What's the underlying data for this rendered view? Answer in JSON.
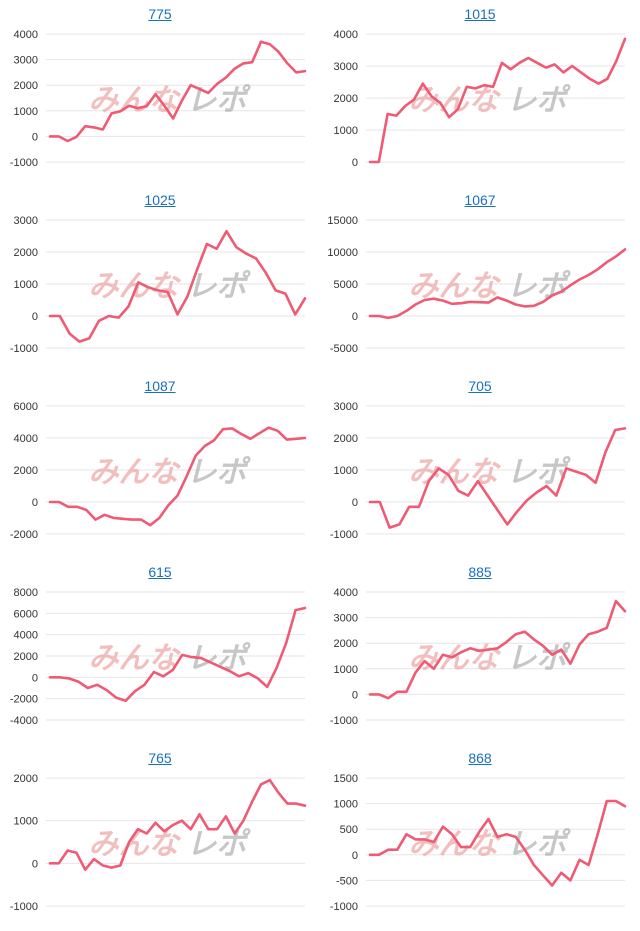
{
  "watermark": {
    "left": "みんな",
    "right": "レポ"
  },
  "colors": {
    "line": "#ef5a74",
    "title_link": "#1a6fc0",
    "grid": "#e6e6e6"
  },
  "chart_data": [
    {
      "type": "line",
      "title": "775",
      "ylim": [
        -1000,
        4000
      ],
      "yticks": [
        -1000,
        0,
        1000,
        2000,
        3000,
        4000
      ],
      "values": [
        0,
        0,
        -180,
        -20,
        400,
        350,
        270,
        900,
        980,
        1200,
        1100,
        1180,
        1650,
        1200,
        700,
        1400,
        2000,
        1850,
        1700,
        2050,
        2300,
        2650,
        2850,
        2900,
        3700,
        3600,
        3300,
        2850,
        2500,
        2550
      ]
    },
    {
      "type": "line",
      "title": "1015",
      "ylim": [
        0,
        4000
      ],
      "yticks": [
        0,
        1000,
        2000,
        3000,
        4000
      ],
      "values": [
        0,
        0,
        1500,
        1450,
        1750,
        1950,
        2450,
        2050,
        1850,
        1400,
        1650,
        2350,
        2300,
        2400,
        2350,
        3100,
        2900,
        3100,
        3250,
        3100,
        2950,
        3050,
        2800,
        3000,
        2800,
        2600,
        2450,
        2600,
        3150,
        3850
      ]
    },
    {
      "type": "line",
      "title": "1025",
      "ylim": [
        -1000,
        3000
      ],
      "yticks": [
        -1000,
        0,
        1000,
        2000,
        3000
      ],
      "values": [
        0,
        0,
        -550,
        -800,
        -700,
        -150,
        0,
        -50,
        300,
        1050,
        900,
        800,
        750,
        50,
        600,
        1450,
        2250,
        2100,
        2650,
        2150,
        1950,
        1800,
        1350,
        800,
        700,
        50,
        550
      ]
    },
    {
      "type": "line",
      "title": "1067",
      "ylim": [
        -5000,
        15000
      ],
      "yticks": [
        -5000,
        0,
        5000,
        10000,
        15000
      ],
      "values": [
        0,
        0,
        -300,
        0,
        800,
        1800,
        2500,
        2700,
        2400,
        1900,
        2000,
        2200,
        2150,
        2100,
        2900,
        2400,
        1800,
        1500,
        1600,
        2200,
        3200,
        3800,
        4800,
        5700,
        6400,
        7300,
        8400,
        9300,
        10400
      ]
    },
    {
      "type": "line",
      "title": "1087",
      "ylim": [
        -2000,
        6000
      ],
      "yticks": [
        -2000,
        0,
        2000,
        4000,
        6000
      ],
      "values": [
        0,
        0,
        -300,
        -300,
        -500,
        -1100,
        -800,
        -1000,
        -1050,
        -1100,
        -1100,
        -1450,
        -1000,
        -200,
        400,
        1600,
        2900,
        3500,
        3850,
        4550,
        4600,
        4250,
        3950,
        4300,
        4650,
        4450,
        3900,
        3950,
        4000
      ]
    },
    {
      "type": "line",
      "title": "705",
      "ylim": [
        -1000,
        3000
      ],
      "yticks": [
        -1000,
        0,
        1000,
        2000,
        3000
      ],
      "values": [
        0,
        0,
        -800,
        -700,
        -150,
        -150,
        650,
        1050,
        850,
        350,
        200,
        650,
        200,
        -250,
        -700,
        -300,
        50,
        300,
        500,
        200,
        1050,
        950,
        850,
        600,
        1550,
        2250,
        2300
      ]
    },
    {
      "type": "line",
      "title": "615",
      "ylim": [
        -4000,
        8000
      ],
      "yticks": [
        -4000,
        -2000,
        0,
        2000,
        4000,
        6000,
        8000
      ],
      "values": [
        0,
        0,
        -100,
        -400,
        -1000,
        -700,
        -1200,
        -1900,
        -2200,
        -1300,
        -700,
        500,
        100,
        700,
        2100,
        1900,
        1800,
        1400,
        1000,
        600,
        100,
        400,
        -100,
        -900,
        900,
        3200,
        6300,
        6500
      ]
    },
    {
      "type": "line",
      "title": "885",
      "ylim": [
        -1000,
        4000
      ],
      "yticks": [
        -1000,
        0,
        1000,
        2000,
        3000,
        4000
      ],
      "values": [
        0,
        0,
        -150,
        100,
        100,
        850,
        1300,
        1000,
        1550,
        1450,
        1650,
        1800,
        1700,
        1750,
        1800,
        2050,
        2350,
        2450,
        2150,
        1900,
        1550,
        1750,
        1200,
        1950,
        2350,
        2450,
        2600,
        3650,
        3250
      ]
    },
    {
      "type": "line",
      "title": "765",
      "ylim": [
        -1000,
        2000
      ],
      "yticks": [
        -1000,
        0,
        1000,
        2000
      ],
      "values": [
        0,
        0,
        300,
        250,
        -150,
        100,
        -50,
        -100,
        -50,
        500,
        800,
        700,
        950,
        750,
        900,
        1000,
        800,
        1150,
        800,
        800,
        1100,
        700,
        1000,
        1450,
        1850,
        1950,
        1650,
        1400,
        1400,
        1350
      ]
    },
    {
      "type": "line",
      "title": "868",
      "ylim": [
        -1000,
        1500
      ],
      "yticks": [
        -1000,
        -500,
        0,
        500,
        1000,
        1500
      ],
      "values": [
        0,
        0,
        100,
        100,
        400,
        300,
        300,
        250,
        550,
        400,
        150,
        150,
        450,
        700,
        350,
        400,
        350,
        100,
        -200,
        -400,
        -600,
        -350,
        -500,
        -100,
        -200,
        400,
        1050,
        1050,
        950
      ]
    }
  ]
}
